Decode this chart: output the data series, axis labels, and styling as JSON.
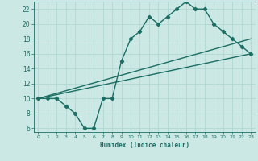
{
  "title": "",
  "xlabel": "Humidex (Indice chaleur)",
  "bg_color": "#cce8e4",
  "grid_color": "#b0d8d4",
  "line_color": "#1a6e64",
  "xlim": [
    -0.5,
    23.5
  ],
  "ylim": [
    5.5,
    23.0
  ],
  "xticks": [
    0,
    1,
    2,
    3,
    4,
    5,
    6,
    7,
    8,
    9,
    10,
    11,
    12,
    13,
    14,
    15,
    16,
    17,
    18,
    19,
    20,
    21,
    22,
    23
  ],
  "yticks": [
    6,
    8,
    10,
    12,
    14,
    16,
    18,
    20,
    22
  ],
  "curve1_x": [
    0,
    1,
    2,
    3,
    4,
    5,
    6,
    7,
    8,
    9,
    10,
    11,
    12,
    13,
    14,
    15,
    16,
    17,
    18,
    19,
    20,
    21,
    22,
    23
  ],
  "curve1_y": [
    10,
    10,
    10,
    9,
    8,
    6,
    6,
    10,
    10,
    15,
    18,
    19,
    21,
    20,
    21,
    22,
    23,
    22,
    22,
    20,
    19,
    18,
    17,
    16
  ],
  "line1_x": [
    0,
    23
  ],
  "line1_y": [
    10,
    16
  ],
  "line2_x": [
    0,
    23
  ],
  "line2_y": [
    10,
    18
  ],
  "marker": "D",
  "markersize": 2.2,
  "linewidth": 1.0
}
